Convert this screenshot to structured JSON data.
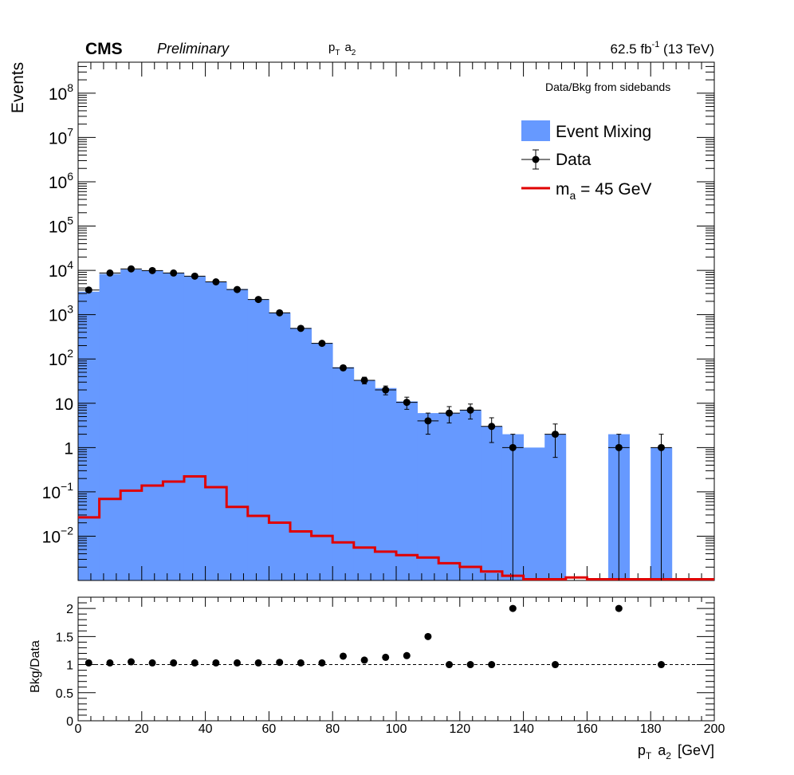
{
  "header": {
    "experiment": "CMS",
    "status": "Preliminary",
    "variable": "p",
    "variable_sub": "T",
    "variable_obj": "a",
    "variable_obj_sub": "2",
    "lumi_value": "62.5 fb",
    "lumi_exp": "-1",
    "lumi_energy": "(13 TeV)"
  },
  "annotation": "Data/Bkg from sidebands",
  "legend": {
    "mixing": "Event Mixing",
    "data": "Data",
    "signal_m": "m",
    "signal_sub": "a",
    "signal_rest": " = 45 GeV"
  },
  "colors": {
    "background_fill": "#6699ff",
    "signal_line": "#e00000",
    "data_marker": "#000000"
  },
  "chart_data": [
    {
      "type": "bar",
      "panel": "main",
      "yscale": "log",
      "ylabel": "Events",
      "xlim": [
        0,
        200
      ],
      "ylim": [
        0.001,
        500000000
      ],
      "y_tick_labels": [
        {
          "v": 100000000.0,
          "base": "10",
          "exp": "8"
        },
        {
          "v": 10000000.0,
          "base": "10",
          "exp": "7"
        },
        {
          "v": 1000000.0,
          "base": "10",
          "exp": "6"
        },
        {
          "v": 100000.0,
          "base": "10",
          "exp": "5"
        },
        {
          "v": 10000.0,
          "base": "10",
          "exp": "4"
        },
        {
          "v": 1000.0,
          "base": "10",
          "exp": "3"
        },
        {
          "v": 100.0,
          "base": "10",
          "exp": "2"
        },
        {
          "v": 10,
          "base": "10",
          "exp": ""
        },
        {
          "v": 1,
          "base": "1",
          "exp": ""
        },
        {
          "v": 0.1,
          "base": "10",
          "exp": "−1"
        },
        {
          "v": 0.01,
          "base": "10",
          "exp": "−2"
        }
      ],
      "bin_edges": [
        0,
        6.67,
        13.33,
        20,
        26.67,
        33.33,
        40,
        46.67,
        53.33,
        60,
        66.67,
        73.33,
        80,
        86.67,
        93.33,
        100,
        106.67,
        113.33,
        120,
        126.67,
        133.33,
        140,
        146.67,
        153.33,
        160,
        166.67,
        173.33,
        180,
        186.67,
        193.33,
        200
      ],
      "series": [
        {
          "name": "Event Mixing",
          "values": [
            3300,
            8300,
            10500,
            10000,
            8800,
            7300,
            5500,
            3800,
            2200,
            1100,
            500,
            230,
            65,
            33,
            22,
            11,
            6,
            6,
            7,
            3,
            2,
            1,
            2,
            0,
            0,
            2,
            0,
            1,
            0,
            0
          ]
        },
        {
          "name": "m_a = 45 GeV",
          "values": [
            0.025,
            0.065,
            0.1,
            0.13,
            0.16,
            0.21,
            0.12,
            0.043,
            0.027,
            0.019,
            0.012,
            0.0095,
            0.0068,
            0.0052,
            0.0042,
            0.0035,
            0.0031,
            0.0023,
            0.0019,
            0.0015,
            0.0012,
            0.001,
            0.001,
            0.0011,
            0.001,
            0.001,
            0.001,
            0.001,
            0.001,
            0.001
          ]
        },
        {
          "name": "Data",
          "points": [
            {
              "x": 3.33,
              "y": 3600,
              "err": 60
            },
            {
              "x": 10,
              "y": 8700,
              "err": 93
            },
            {
              "x": 16.67,
              "y": 10800,
              "err": 104
            },
            {
              "x": 23.33,
              "y": 9900,
              "err": 100
            },
            {
              "x": 30,
              "y": 8700,
              "err": 93
            },
            {
              "x": 36.67,
              "y": 7400,
              "err": 86
            },
            {
              "x": 43.33,
              "y": 5500,
              "err": 74
            },
            {
              "x": 50,
              "y": 3700,
              "err": 61
            },
            {
              "x": 56.67,
              "y": 2200,
              "err": 47
            },
            {
              "x": 63.33,
              "y": 1100,
              "err": 33
            },
            {
              "x": 70,
              "y": 490,
              "err": 22
            },
            {
              "x": 76.67,
              "y": 225,
              "err": 15
            },
            {
              "x": 83.33,
              "y": 63,
              "err": 8
            },
            {
              "x": 90,
              "y": 33,
              "err": 5.7
            },
            {
              "x": 96.67,
              "y": 20,
              "err": 4.5
            },
            {
              "x": 103.33,
              "y": 10.5,
              "err": 3.2
            },
            {
              "x": 110,
              "y": 4,
              "err": 2
            },
            {
              "x": 116.67,
              "y": 6,
              "err": 2.4
            },
            {
              "x": 123.33,
              "y": 7,
              "err": 2.6
            },
            {
              "x": 130,
              "y": 3,
              "err": 1.7
            },
            {
              "x": 136.67,
              "y": 1,
              "err": 1
            },
            {
              "x": 150,
              "y": 2,
              "err": 1.4
            },
            {
              "x": 170,
              "y": 1,
              "err": 1
            },
            {
              "x": 183.33,
              "y": 1,
              "err": 1
            }
          ]
        }
      ]
    },
    {
      "type": "scatter",
      "panel": "ratio",
      "ylabel": "Bkg/Data",
      "xlabel": "p_T a_2 [GeV]",
      "xlim": [
        0,
        200
      ],
      "ylim": [
        0,
        2.2
      ],
      "x_ticks": [
        0,
        20,
        40,
        60,
        80,
        100,
        120,
        140,
        160,
        180,
        200
      ],
      "x_tick_labels": [
        "0",
        "20",
        "40",
        "60",
        "80",
        "100",
        "120",
        "140",
        "160",
        "180",
        "200"
      ],
      "y_ticks": [
        0,
        0.5,
        1,
        1.5,
        2
      ],
      "y_tick_labels": [
        "0",
        "0.5",
        "1",
        "1.5",
        "2"
      ],
      "reference_line": 1,
      "points": [
        {
          "x": 3.33,
          "y": 1.03
        },
        {
          "x": 10,
          "y": 1.03
        },
        {
          "x": 16.67,
          "y": 1.05
        },
        {
          "x": 23.33,
          "y": 1.03
        },
        {
          "x": 30,
          "y": 1.03
        },
        {
          "x": 36.67,
          "y": 1.03
        },
        {
          "x": 43.33,
          "y": 1.03
        },
        {
          "x": 50,
          "y": 1.03
        },
        {
          "x": 56.67,
          "y": 1.03
        },
        {
          "x": 63.33,
          "y": 1.04
        },
        {
          "x": 70,
          "y": 1.03
        },
        {
          "x": 76.67,
          "y": 1.03
        },
        {
          "x": 83.33,
          "y": 1.15
        },
        {
          "x": 90,
          "y": 1.08
        },
        {
          "x": 96.67,
          "y": 1.13
        },
        {
          "x": 103.33,
          "y": 1.16
        },
        {
          "x": 110,
          "y": 1.5
        },
        {
          "x": 116.67,
          "y": 1.0
        },
        {
          "x": 123.33,
          "y": 1.0
        },
        {
          "x": 130,
          "y": 1.0
        },
        {
          "x": 136.67,
          "y": 2.0
        },
        {
          "x": 150,
          "y": 1.0
        },
        {
          "x": 170,
          "y": 2.0
        },
        {
          "x": 183.33,
          "y": 1.0
        }
      ]
    }
  ]
}
